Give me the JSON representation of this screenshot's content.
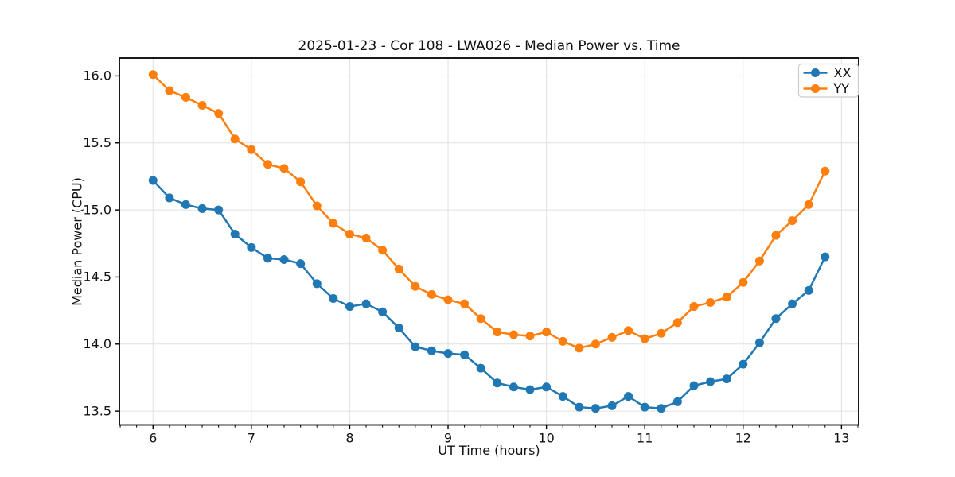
{
  "chart_data": {
    "type": "line",
    "title": "2025-01-23 - Cor 108 - LWA026 - Median Power vs. Time",
    "xlabel": "UT Time (hours)",
    "ylabel": "Median Power (CPU)",
    "xlim": [
      5.658,
      13.175
    ],
    "ylim": [
      13.397,
      16.133
    ],
    "xticks": [
      6,
      7,
      8,
      9,
      10,
      11,
      12,
      13
    ],
    "xtick_labels": [
      "6",
      "7",
      "8",
      "9",
      "10",
      "11",
      "12",
      "13"
    ],
    "yticks": [
      13.5,
      14.0,
      14.5,
      15.0,
      15.5,
      16.0
    ],
    "ytick_labels": [
      "13.5",
      "14.0",
      "14.5",
      "15.0",
      "15.5",
      "16.0"
    ],
    "x_minor_tick_step_hours": 0.1667,
    "grid": true,
    "legend_position": "upper right",
    "x": [
      6.0,
      6.167,
      6.333,
      6.5,
      6.667,
      6.833,
      7.0,
      7.167,
      7.333,
      7.5,
      7.667,
      7.833,
      8.0,
      8.167,
      8.333,
      8.5,
      8.667,
      8.833,
      9.0,
      9.167,
      9.333,
      9.5,
      9.667,
      9.833,
      10.0,
      10.167,
      10.333,
      10.5,
      10.667,
      10.833,
      11.0,
      11.167,
      11.333,
      11.5,
      11.667,
      11.833,
      12.0,
      12.167,
      12.333,
      12.5,
      12.667,
      12.833
    ],
    "series": [
      {
        "name": "XX",
        "color": "#1f77b4",
        "values": [
          15.22,
          15.09,
          15.04,
          15.01,
          15.0,
          14.82,
          14.72,
          14.64,
          14.63,
          14.6,
          14.45,
          14.34,
          14.28,
          14.3,
          14.24,
          14.12,
          13.98,
          13.95,
          13.93,
          13.92,
          13.82,
          13.71,
          13.68,
          13.66,
          13.68,
          13.61,
          13.53,
          13.52,
          13.54,
          13.61,
          13.53,
          13.52,
          13.57,
          13.69,
          13.72,
          13.74,
          13.85,
          14.01,
          14.19,
          14.3,
          14.4,
          14.65
        ]
      },
      {
        "name": "YY",
        "color": "#ff7f0e",
        "values": [
          16.01,
          15.89,
          15.84,
          15.78,
          15.72,
          15.53,
          15.45,
          15.34,
          15.31,
          15.21,
          15.03,
          14.9,
          14.82,
          14.79,
          14.7,
          14.56,
          14.43,
          14.37,
          14.33,
          14.3,
          14.19,
          14.09,
          14.07,
          14.06,
          14.09,
          14.02,
          13.97,
          14.0,
          14.05,
          14.1,
          14.04,
          14.08,
          14.16,
          14.28,
          14.31,
          14.35,
          14.46,
          14.62,
          14.81,
          14.92,
          15.04,
          15.29
        ]
      }
    ],
    "styles": {
      "grid_color": "#e0e0e0",
      "spine_color": "#000000",
      "tick_label_color": "#111111",
      "background": "#ffffff",
      "legend_border_color": "#cccccc",
      "legend_background": "#ffffff"
    }
  }
}
